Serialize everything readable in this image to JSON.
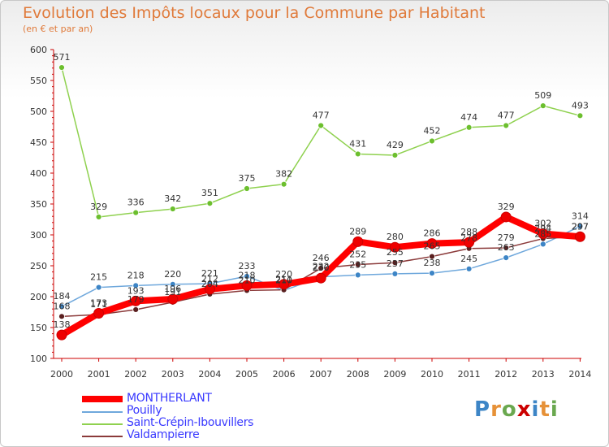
{
  "chart_data": {
    "type": "line",
    "title": "Evolution des Impôts locaux pour la Commune par Habitant",
    "subtitle": "(en € et par an)",
    "xlabel": "",
    "ylabel": "",
    "ylim": [
      100,
      600
    ],
    "yticks": [
      "100",
      "150",
      "200",
      "250",
      "300",
      "350",
      "400",
      "450",
      "500",
      "550",
      "600"
    ],
    "categories": [
      "2000",
      "2001",
      "2002",
      "2003",
      "2004",
      "2005",
      "2006",
      "2007",
      "2008",
      "2009",
      "2010",
      "2011",
      "2012",
      "2013",
      "2014"
    ],
    "series": [
      {
        "name": "Saint-Crépin-Ibouvillers",
        "color": "#8fd14f",
        "dot": "#6cbf2e",
        "values": [
          571,
          329,
          336,
          342,
          351,
          375,
          382,
          477,
          431,
          429,
          452,
          474,
          477,
          509,
          493
        ]
      },
      {
        "name": "Pouilly",
        "color": "#6fa8dc",
        "dot": "#3d85c6",
        "values": [
          184,
          215,
          218,
          220,
          221,
          233,
          210,
          232,
          235,
          237,
          238,
          245,
          263,
          285,
          314
        ]
      },
      {
        "name": "Valdampierre",
        "color": "#8b3a3a",
        "dot": "#5a1f1f",
        "values": [
          168,
          171,
          179,
          191,
          204,
          210,
          211,
          246,
          252,
          255,
          265,
          278,
          279,
          294,
          297
        ]
      },
      {
        "name": "MONTHERLANT",
        "color": "#ff0000",
        "dot": "#ee0000",
        "values": [
          138,
          173,
          193,
          196,
          212,
          218,
          220,
          230,
          289,
          280,
          286,
          288,
          329,
          302,
          297
        ]
      }
    ],
    "legend": [
      "MONTHERLANT",
      "Pouilly",
      "Saint-Crépin-Ibouvillers",
      "Valdampierre"
    ],
    "grid": false
  },
  "logo": {
    "text": "Proxiti",
    "colors": [
      "#3d85c6",
      "#e69138",
      "#6aa84f",
      "#cc0000",
      "#3d85c6",
      "#e69138",
      "#6aa84f"
    ]
  }
}
